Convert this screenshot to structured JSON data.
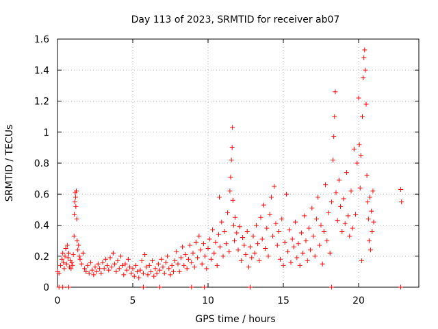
{
  "chart_data": {
    "type": "scatter",
    "title": "Day 113 of 2023, SRMTID for receiver ab07",
    "xlabel": "GPS time / hours",
    "ylabel": "SRMTID / TECUs",
    "xlim": [
      0,
      24
    ],
    "ylim": [
      0,
      1.6
    ],
    "grid": true,
    "marker": "plus",
    "color": "#ff0000",
    "x_ticks": [
      "0",
      "5",
      "10",
      "15",
      "20"
    ],
    "x_tick_values": [
      0,
      5,
      10,
      15,
      20
    ],
    "y_ticks": [
      "0",
      "0.2",
      "0.4",
      "0.6",
      "0.8",
      "1",
      "1.2",
      "1.4",
      "1.6"
    ],
    "y_tick_values": [
      0,
      0.2,
      0.4,
      0.6,
      0.8,
      1,
      1.2,
      1.4,
      1.6
    ],
    "series": [
      {
        "name": "SRMTID",
        "points": [
          [
            0.0,
            0.1
          ],
          [
            0.1,
            0.09
          ],
          [
            0.2,
            0.14
          ],
          [
            0.3,
            0.18
          ],
          [
            0.35,
            0.22
          ],
          [
            0.4,
            0.16
          ],
          [
            0.45,
            0.12
          ],
          [
            0.5,
            0.2
          ],
          [
            0.55,
            0.25
          ],
          [
            0.6,
            0.15
          ],
          [
            0.65,
            0.27
          ],
          [
            0.7,
            0.19
          ],
          [
            0.75,
            0.22
          ],
          [
            0.8,
            0.13
          ],
          [
            0.85,
            0.17
          ],
          [
            0.9,
            0.12
          ],
          [
            0.95,
            0.16
          ],
          [
            1.0,
            0.14
          ],
          [
            1.05,
            0.21
          ],
          [
            1.1,
            0.33
          ],
          [
            1.12,
            0.47
          ],
          [
            1.15,
            0.55
          ],
          [
            1.18,
            0.61
          ],
          [
            1.2,
            0.58
          ],
          [
            1.22,
            0.52
          ],
          [
            1.25,
            0.62
          ],
          [
            1.28,
            0.44
          ],
          [
            1.3,
            0.3
          ],
          [
            1.35,
            0.24
          ],
          [
            1.4,
            0.27
          ],
          [
            1.45,
            0.2
          ],
          [
            1.5,
            0.18
          ],
          [
            1.6,
            0.15
          ],
          [
            1.7,
            0.22
          ],
          [
            1.8,
            0.12
          ],
          [
            1.9,
            0.1
          ],
          [
            2.0,
            0.14
          ],
          [
            2.1,
            0.09
          ],
          [
            2.2,
            0.16
          ],
          [
            2.3,
            0.11
          ],
          [
            2.4,
            0.08
          ],
          [
            2.5,
            0.13
          ],
          [
            2.6,
            0.1
          ],
          [
            2.7,
            0.15
          ],
          [
            2.8,
            0.12
          ],
          [
            2.9,
            0.09
          ],
          [
            3.0,
            0.16
          ],
          [
            3.1,
            0.12
          ],
          [
            3.2,
            0.18
          ],
          [
            3.3,
            0.14
          ],
          [
            3.4,
            0.11
          ],
          [
            3.5,
            0.19
          ],
          [
            3.6,
            0.13
          ],
          [
            3.7,
            0.22
          ],
          [
            3.8,
            0.15
          ],
          [
            3.9,
            0.1
          ],
          [
            4.0,
            0.17
          ],
          [
            4.1,
            0.12
          ],
          [
            4.2,
            0.2
          ],
          [
            4.3,
            0.14
          ],
          [
            4.4,
            0.08
          ],
          [
            4.5,
            0.15
          ],
          [
            4.6,
            0.11
          ],
          [
            4.7,
            0.18
          ],
          [
            4.8,
            0.13
          ],
          [
            4.9,
            0.09
          ],
          [
            5.0,
            0.12
          ],
          [
            5.1,
            0.07
          ],
          [
            5.2,
            0.14
          ],
          [
            5.3,
            0.1
          ],
          [
            5.4,
            0.06
          ],
          [
            5.5,
            0.11
          ],
          [
            5.6,
            0.17
          ],
          [
            5.7,
            0.09
          ],
          [
            5.8,
            0.21
          ],
          [
            5.9,
            0.13
          ],
          [
            6.0,
            0.08
          ],
          [
            6.1,
            0.14
          ],
          [
            6.2,
            0.1
          ],
          [
            6.3,
            0.17
          ],
          [
            6.4,
            0.07
          ],
          [
            6.5,
            0.12
          ],
          [
            6.6,
            0.09
          ],
          [
            6.7,
            0.15
          ],
          [
            6.8,
            0.11
          ],
          [
            6.9,
            0.18
          ],
          [
            7.0,
            0.13
          ],
          [
            7.1,
            0.09
          ],
          [
            7.2,
            0.16
          ],
          [
            7.3,
            0.2
          ],
          [
            7.4,
            0.12
          ],
          [
            7.5,
            0.08
          ],
          [
            7.6,
            0.14
          ],
          [
            7.7,
            0.1
          ],
          [
            7.8,
            0.17
          ],
          [
            7.9,
            0.23
          ],
          [
            8.0,
            0.15
          ],
          [
            8.1,
            0.1
          ],
          [
            8.2,
            0.19
          ],
          [
            8.3,
            0.26
          ],
          [
            8.4,
            0.14
          ],
          [
            8.5,
            0.21
          ],
          [
            8.6,
            0.12
          ],
          [
            8.7,
            0.18
          ],
          [
            8.8,
            0.27
          ],
          [
            8.9,
            0.16
          ],
          [
            9.0,
            0.22
          ],
          [
            9.1,
            0.13
          ],
          [
            9.2,
            0.29
          ],
          [
            9.3,
            0.19
          ],
          [
            9.4,
            0.33
          ],
          [
            9.5,
            0.24
          ],
          [
            9.6,
            0.15
          ],
          [
            9.7,
            0.28
          ],
          [
            9.8,
            0.2
          ],
          [
            9.9,
            0.12
          ],
          [
            10.0,
            0.25
          ],
          [
            10.1,
            0.31
          ],
          [
            10.2,
            0.18
          ],
          [
            10.3,
            0.37
          ],
          [
            10.4,
            0.22
          ],
          [
            10.5,
            0.29
          ],
          [
            10.6,
            0.14
          ],
          [
            10.7,
            0.34
          ],
          [
            10.75,
            0.58
          ],
          [
            10.8,
            0.26
          ],
          [
            10.9,
            0.42
          ],
          [
            11.0,
            0.2
          ],
          [
            11.1,
            0.36
          ],
          [
            11.2,
            0.28
          ],
          [
            11.3,
            0.48
          ],
          [
            11.4,
            0.23
          ],
          [
            11.45,
            0.62
          ],
          [
            11.5,
            0.71
          ],
          [
            11.55,
            0.82
          ],
          [
            11.6,
            0.9
          ],
          [
            11.62,
            1.03
          ],
          [
            11.65,
            0.56
          ],
          [
            11.7,
            0.4
          ],
          [
            11.75,
            0.3
          ],
          [
            11.8,
            0.45
          ],
          [
            11.9,
            0.35
          ],
          [
            12.0,
            0.24
          ],
          [
            12.1,
            0.39
          ],
          [
            12.2,
            0.17
          ],
          [
            12.3,
            0.32
          ],
          [
            12.4,
            0.27
          ],
          [
            12.5,
            0.21
          ],
          [
            12.6,
            0.36
          ],
          [
            12.7,
            0.13
          ],
          [
            12.8,
            0.26
          ],
          [
            12.9,
            0.19
          ],
          [
            13.0,
            0.33
          ],
          [
            13.1,
            0.22
          ],
          [
            13.2,
            0.4
          ],
          [
            13.3,
            0.28
          ],
          [
            13.4,
            0.17
          ],
          [
            13.5,
            0.45
          ],
          [
            13.6,
            0.31
          ],
          [
            13.7,
            0.53
          ],
          [
            13.8,
            0.25
          ],
          [
            13.9,
            0.38
          ],
          [
            14.0,
            0.2
          ],
          [
            14.1,
            0.47
          ],
          [
            14.2,
            0.58
          ],
          [
            14.3,
            0.33
          ],
          [
            14.4,
            0.65
          ],
          [
            14.5,
            0.41
          ],
          [
            14.6,
            0.27
          ],
          [
            14.7,
            0.36
          ],
          [
            14.8,
            0.18
          ],
          [
            14.9,
            0.44
          ],
          [
            15.0,
            0.14
          ],
          [
            15.1,
            0.29
          ],
          [
            15.2,
            0.6
          ],
          [
            15.3,
            0.23
          ],
          [
            15.4,
            0.37
          ],
          [
            15.5,
            0.16
          ],
          [
            15.6,
            0.31
          ],
          [
            15.7,
            0.26
          ],
          [
            15.8,
            0.42
          ],
          [
            15.9,
            0.19
          ],
          [
            16.0,
            0.28
          ],
          [
            16.1,
            0.14
          ],
          [
            16.2,
            0.35
          ],
          [
            16.3,
            0.22
          ],
          [
            16.4,
            0.46
          ],
          [
            16.5,
            0.3
          ],
          [
            16.6,
            0.17
          ],
          [
            16.7,
            0.38
          ],
          [
            16.8,
            0.24
          ],
          [
            16.9,
            0.51
          ],
          [
            17.0,
            0.33
          ],
          [
            17.1,
            0.2
          ],
          [
            17.2,
            0.44
          ],
          [
            17.3,
            0.58
          ],
          [
            17.4,
            0.27
          ],
          [
            17.5,
            0.4
          ],
          [
            17.6,
            0.15
          ],
          [
            17.7,
            0.36
          ],
          [
            17.8,
            0.66
          ],
          [
            17.9,
            0.3
          ],
          [
            18.0,
            0.48
          ],
          [
            18.1,
            0.22
          ],
          [
            18.2,
            0.55
          ],
          [
            18.3,
            0.82
          ],
          [
            18.35,
            0.97
          ],
          [
            18.4,
            1.1
          ],
          [
            18.45,
            1.26
          ],
          [
            18.5,
            0.61
          ],
          [
            18.6,
            0.43
          ],
          [
            18.7,
            0.69
          ],
          [
            18.8,
            0.52
          ],
          [
            18.9,
            0.36
          ],
          [
            19.0,
            0.57
          ],
          [
            19.1,
            0.41
          ],
          [
            19.2,
            0.74
          ],
          [
            19.3,
            0.46
          ],
          [
            19.4,
            0.33
          ],
          [
            19.5,
            0.62
          ],
          [
            19.6,
            0.38
          ],
          [
            19.7,
            0.89
          ],
          [
            19.8,
            0.47
          ],
          [
            19.9,
            0.8
          ],
          [
            20.0,
            1.22
          ],
          [
            20.05,
            0.92
          ],
          [
            20.1,
            0.64
          ],
          [
            20.15,
            0.85
          ],
          [
            20.2,
            0.17
          ],
          [
            20.25,
            1.1
          ],
          [
            20.3,
            1.35
          ],
          [
            20.35,
            1.48
          ],
          [
            20.4,
            1.53
          ],
          [
            20.45,
            1.4
          ],
          [
            20.5,
            1.18
          ],
          [
            20.55,
            0.72
          ],
          [
            20.6,
            0.55
          ],
          [
            20.65,
            0.44
          ],
          [
            20.7,
            0.3
          ],
          [
            20.75,
            0.58
          ],
          [
            20.8,
            0.24
          ],
          [
            20.85,
            0.49
          ],
          [
            20.9,
            0.36
          ],
          [
            20.95,
            0.62
          ],
          [
            21.0,
            0.42
          ],
          [
            22.8,
            0.63
          ],
          [
            22.85,
            0.55
          ]
        ]
      },
      {
        "name": "baseline markers",
        "points": [
          [
            0.1,
            0.0
          ],
          [
            0.35,
            0.0
          ],
          [
            0.75,
            0.0
          ],
          [
            5.7,
            0.0
          ],
          [
            6.8,
            0.0
          ],
          [
            8.9,
            0.0
          ],
          [
            9.75,
            0.0
          ],
          [
            12.8,
            0.0
          ],
          [
            18.2,
            0.0
          ],
          [
            22.8,
            0.0
          ]
        ]
      }
    ]
  }
}
